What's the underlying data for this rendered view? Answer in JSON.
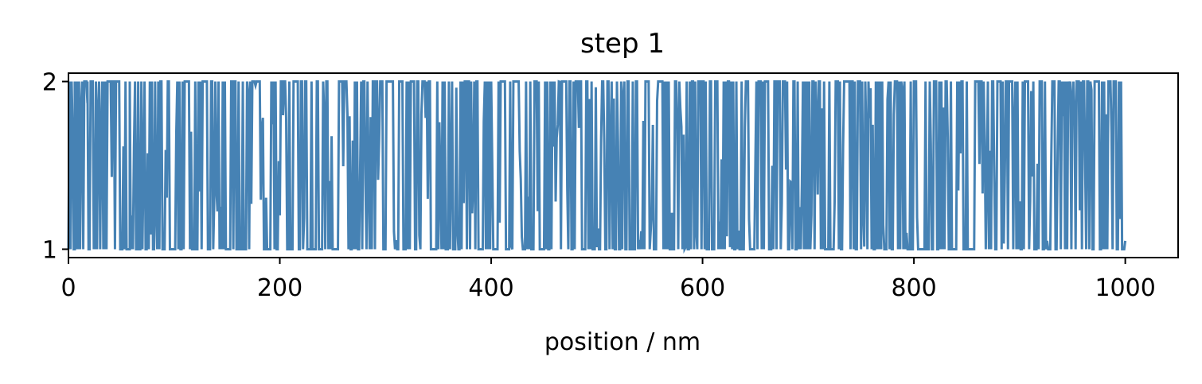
{
  "chart_data": {
    "type": "line",
    "title": "step 1",
    "xlabel": "position / nm",
    "ylabel": "",
    "xlim": [
      0,
      1050
    ],
    "ylim": [
      0.95,
      2.05
    ],
    "xticks": [
      0,
      200,
      400,
      600,
      800,
      1000
    ],
    "xtick_labels": [
      "0",
      "200",
      "400",
      "600",
      "800",
      "1000"
    ],
    "yticks": [
      1,
      2
    ],
    "ytick_labels": [
      "1",
      "2"
    ],
    "grid": false,
    "legend": "none",
    "colors": {
      "trace": "#4682b4",
      "frame": "#000000",
      "background": "#ffffff"
    },
    "series": [
      {
        "x": [
          0,
          1,
          1,
          2,
          2,
          3,
          4,
          5,
          6,
          6,
          7,
          8,
          9,
          10,
          10,
          11,
          12,
          13,
          14,
          14,
          15,
          16,
          17,
          18,
          18,
          19,
          20,
          21,
          21,
          22,
          23,
          24,
          25,
          25,
          26,
          27,
          28,
          29,
          30,
          31,
          32,
          33,
          34,
          34,
          35,
          36,
          37,
          38,
          39,
          40,
          41,
          42,
          43,
          43,
          44,
          45,
          46,
          47,
          47,
          48,
          49,
          50,
          51,
          52,
          53,
          54,
          55,
          56,
          57,
          58,
          58,
          59,
          60,
          61,
          62,
          63,
          64,
          65,
          66,
          67,
          68,
          69,
          70,
          71,
          72,
          73,
          74,
          75,
          76,
          77,
          78,
          79,
          80,
          81,
          82,
          83,
          84,
          85,
          86,
          87,
          88,
          89,
          90,
          91,
          92,
          93,
          94,
          95,
          96,
          97,
          98,
          99,
          100,
          101,
          102,
          103,
          104,
          105,
          106,
          107,
          108,
          109,
          110,
          111,
          112,
          113,
          114,
          115,
          116,
          117,
          118,
          119,
          120,
          121,
          122,
          123,
          124,
          125,
          126,
          127,
          128,
          129,
          130,
          131,
          132,
          133,
          134,
          135,
          136,
          137,
          138,
          139,
          140,
          141,
          142,
          143,
          144,
          145,
          146,
          147,
          148,
          149,
          150,
          151,
          152,
          153,
          154,
          155,
          156,
          157,
          158,
          159,
          160,
          161,
          162,
          163,
          164,
          165,
          166,
          167,
          168,
          169,
          170,
          171,
          172,
          173,
          174,
          175,
          176,
          177,
          178,
          179,
          180,
          181,
          182,
          183,
          184,
          185,
          186,
          187,
          188,
          189,
          190,
          191,
          192,
          193,
          194,
          195,
          196,
          197,
          198,
          199,
          200,
          201,
          202,
          203,
          204,
          205,
          206,
          207,
          208,
          209,
          210,
          211,
          212,
          213,
          214,
          215,
          216,
          217,
          218,
          219,
          220,
          221,
          222,
          223,
          224,
          225,
          226,
          227,
          228,
          229,
          230,
          231,
          232,
          233,
          234,
          235,
          236,
          237,
          238,
          239,
          240,
          241,
          242,
          243,
          244,
          245,
          246,
          247,
          248,
          249,
          250,
          251,
          252,
          253,
          254,
          255,
          256,
          257,
          258,
          259,
          260,
          261,
          262,
          263,
          264,
          265,
          266,
          267,
          268,
          269,
          270,
          271,
          272,
          273,
          274,
          275,
          276,
          277,
          278,
          279,
          280,
          281,
          282,
          283,
          284,
          285,
          286,
          287,
          288,
          289,
          290,
          291,
          292,
          293,
          294,
          295,
          296,
          297,
          298,
          299,
          300,
          301,
          302,
          303,
          304,
          305,
          306,
          307,
          308,
          309,
          310,
          311,
          312,
          313,
          314,
          315,
          316,
          317,
          318,
          319,
          320,
          321,
          322,
          323,
          324,
          325,
          326,
          327,
          328,
          329,
          330,
          331,
          332,
          333,
          334,
          335,
          336,
          337,
          338,
          339,
          340,
          341,
          342,
          343,
          344,
          345,
          346,
          347,
          348,
          349,
          350,
          351,
          352,
          353,
          354,
          355,
          356,
          357,
          358,
          359,
          360,
          361,
          362,
          363,
          364,
          365,
          366,
          367,
          368,
          369,
          370,
          371,
          372,
          373,
          374,
          375,
          376,
          377,
          378,
          379,
          380,
          381,
          382,
          383,
          384,
          385,
          386,
          387,
          388,
          389,
          390,
          391,
          392,
          393,
          394,
          395,
          396,
          397,
          398,
          399,
          400,
          401,
          402,
          403,
          404,
          405,
          406,
          407,
          408,
          409,
          410,
          411,
          412,
          413,
          414,
          415,
          416,
          417,
          418,
          419,
          420,
          421,
          422,
          423,
          424,
          425,
          426,
          427,
          428,
          429,
          430,
          431,
          432,
          433,
          434,
          435,
          436,
          437,
          438,
          439,
          440,
          441,
          442,
          443,
          444,
          445,
          446,
          447,
          448,
          449,
          450,
          451,
          452,
          453,
          454,
          455,
          456,
          457,
          458,
          459,
          460,
          461,
          462,
          463,
          464,
          465,
          466,
          467,
          468,
          469,
          470,
          471,
          472,
          473,
          474,
          475,
          476,
          477,
          478,
          479,
          480,
          481,
          482,
          483,
          484,
          485,
          486,
          487,
          488,
          489,
          490,
          491,
          492,
          493,
          494,
          495,
          496,
          497,
          498,
          499,
          500,
          501,
          502,
          503,
          504,
          505,
          506,
          507,
          508,
          509,
          510,
          511,
          512,
          513,
          514,
          515,
          516,
          517,
          518,
          519,
          520,
          521,
          522,
          523,
          524,
          525,
          526,
          527,
          528,
          529,
          530,
          531,
          532,
          533,
          534,
          535,
          536,
          537,
          538,
          539,
          540,
          541,
          542,
          543,
          544,
          545,
          546,
          547,
          548,
          549,
          550,
          551,
          552,
          553,
          554,
          555,
          556,
          557,
          558,
          559,
          560,
          561,
          562,
          563,
          564,
          565,
          566,
          567,
          568,
          569,
          570,
          571,
          572,
          573,
          574,
          575,
          576,
          577,
          578,
          579,
          580,
          581,
          582,
          583,
          584,
          585,
          586,
          587,
          588,
          589,
          590,
          591,
          592,
          593,
          594,
          595,
          596,
          597,
          598,
          599,
          600,
          601,
          602,
          603,
          604,
          605,
          606,
          607,
          608,
          609,
          610,
          611,
          612,
          613,
          614,
          615,
          616,
          617,
          618,
          619,
          620,
          621,
          622,
          623,
          624,
          625,
          626,
          627,
          628,
          629,
          630,
          631,
          632,
          633,
          634,
          635,
          636,
          637,
          638,
          639,
          640,
          641,
          642,
          643,
          644,
          645,
          646,
          647,
          648,
          649,
          650,
          651,
          652,
          653,
          654,
          655,
          656,
          657,
          658,
          659,
          660,
          661,
          662,
          663,
          664,
          665,
          666,
          667,
          668,
          669,
          670,
          671,
          672,
          673,
          674,
          675,
          676,
          677,
          678,
          679,
          680,
          681,
          682,
          683,
          684,
          685,
          686,
          687,
          688,
          689,
          690,
          691,
          692,
          693,
          694,
          695,
          696,
          697,
          698,
          699,
          700,
          701,
          702,
          703,
          704,
          705,
          706,
          707,
          708,
          709,
          710,
          711,
          712,
          713,
          714,
          715,
          716,
          717,
          718,
          719,
          720,
          721,
          722,
          723,
          724,
          725,
          726,
          727,
          728,
          729,
          730,
          731,
          732,
          733,
          734,
          735,
          736,
          737,
          738,
          739,
          740,
          741,
          742,
          743,
          744,
          745,
          746,
          747,
          748,
          749,
          750,
          751,
          752,
          753,
          754,
          755,
          756,
          757,
          758,
          759,
          760,
          761,
          762,
          763,
          764,
          765,
          766,
          767,
          768,
          769,
          770,
          771,
          772,
          773,
          774,
          775,
          776,
          777,
          778,
          779,
          780,
          781,
          782,
          783,
          784,
          785,
          786,
          787,
          788,
          789,
          790,
          791,
          792,
          793,
          794,
          795,
          796,
          797,
          798,
          799,
          800,
          801,
          802,
          803,
          804,
          805,
          806,
          807,
          808,
          809,
          810,
          811,
          812,
          813,
          814,
          815,
          816,
          817,
          818,
          819,
          820,
          821,
          822,
          823,
          824,
          825,
          826,
          827,
          828,
          829,
          830,
          831,
          832,
          833,
          834,
          835,
          836,
          837,
          838,
          839,
          840,
          841,
          842,
          843,
          844,
          845,
          846,
          847,
          848,
          849,
          850,
          851,
          852,
          853,
          854,
          855,
          856,
          857,
          858,
          859,
          860,
          861,
          862,
          863,
          864,
          865,
          866,
          867,
          868,
          869,
          870,
          871,
          872,
          873,
          874,
          875,
          876,
          877,
          878,
          879,
          880,
          881,
          882,
          883,
          884,
          885,
          886,
          887,
          888,
          889,
          890,
          891,
          892,
          893,
          894,
          895,
          896,
          897,
          898,
          899,
          900,
          901,
          902,
          903,
          904,
          905,
          906,
          907,
          908,
          909,
          910,
          911,
          912,
          913,
          914,
          915,
          916,
          917,
          918,
          919,
          920,
          921,
          922,
          923,
          924,
          925,
          926,
          927,
          928,
          929,
          930,
          931,
          932,
          933,
          934,
          935,
          936,
          937,
          938,
          939,
          940,
          941,
          942,
          943,
          944,
          945,
          946,
          947,
          948,
          949,
          950,
          951,
          952,
          953,
          954,
          955,
          956,
          957,
          958,
          959,
          960,
          961,
          962,
          963,
          964,
          965,
          966,
          967,
          968,
          969,
          970,
          971,
          972,
          973,
          974,
          975,
          976,
          977,
          978,
          979,
          980,
          981,
          982,
          983,
          984,
          985,
          986,
          987,
          988,
          989,
          990,
          991,
          992,
          993,
          994,
          995,
          996,
          997,
          998,
          999,
          1000
        ],
        "y_pattern_note_removed": true
      }
    ]
  }
}
